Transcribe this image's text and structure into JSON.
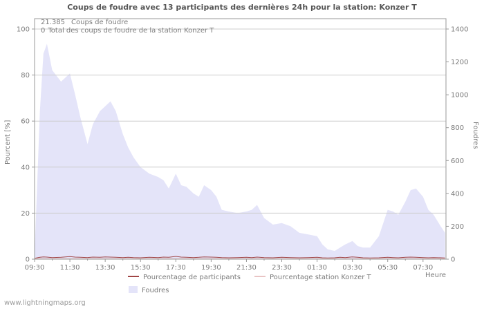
{
  "title": "Coups de foudre avec 13 participants des dernières 24h pour la station: Konzer T",
  "stats": {
    "strikes_value": "21.385",
    "strikes_label": "Coups de foudre",
    "station_value": "0",
    "station_label": "Total des coups de foudre de la station Konzer T"
  },
  "axes": {
    "y_left_label": "Pourcent  [%]",
    "y_right_label": "Foudres",
    "x_label": "Heure"
  },
  "legend": {
    "participants": "Pourcentage de participants",
    "station": "Pourcentage station Konzer T",
    "foudres": "Foudres"
  },
  "watermark": "www.lightningmaps.org",
  "colors": {
    "area_fill": "#e4e4f9",
    "participants_line": "#a04545",
    "station_line": "#e9c4c4",
    "grid": "#cccccc",
    "axis": "#999999",
    "text": "#7a7a7a",
    "title": "#555555"
  },
  "chart_data": {
    "type": "area",
    "title": "Coups de foudre avec 13 participants des dernières 24h pour la station: Konzer T",
    "x_unit": "hours_since_09:30",
    "x_domain": [
      0,
      23.3
    ],
    "x_ticks": [
      "09:30",
      "11:30",
      "13:30",
      "15:30",
      "17:30",
      "19:30",
      "21:30",
      "23:30",
      "01:30",
      "03:30",
      "05:30",
      "07:30"
    ],
    "x_tick_hours": [
      0,
      2,
      4,
      6,
      8,
      10,
      12,
      14,
      16,
      18,
      20,
      22
    ],
    "y_left": {
      "label": "Pourcent [%]",
      "min": 0,
      "max": 100,
      "ticks": [
        0,
        20,
        40,
        60,
        80,
        100
      ]
    },
    "y_right": {
      "label": "Foudres",
      "min": 0,
      "max": 1400,
      "ticks": [
        0,
        200,
        400,
        600,
        800,
        1000,
        1200,
        1400
      ]
    },
    "grid": "horizontal",
    "legend_position": "bottom",
    "x": [
      0,
      0.3,
      0.5,
      0.7,
      1.0,
      1.5,
      2.0,
      2.3,
      2.6,
      3.0,
      3.3,
      3.7,
      4.0,
      4.3,
      4.6,
      5.0,
      5.3,
      5.6,
      6.0,
      6.5,
      7.0,
      7.3,
      7.6,
      8.0,
      8.3,
      8.6,
      9.0,
      9.3,
      9.6,
      10.0,
      10.3,
      10.6,
      11.0,
      11.5,
      12.0,
      12.3,
      12.6,
      13.0,
      13.5,
      14.0,
      14.5,
      15.0,
      15.5,
      16.0,
      16.3,
      16.6,
      17.0,
      17.3,
      17.6,
      18.0,
      18.3,
      18.6,
      19.0,
      19.5,
      20.0,
      20.3,
      20.6,
      21.0,
      21.3,
      21.6,
      22.0,
      22.3,
      22.6,
      23.0,
      23.25
    ],
    "series": [
      {
        "name": "Foudres",
        "type": "area",
        "axis": "right",
        "color": "#e4e4f9",
        "values": [
          30,
          900,
          1250,
          1310,
          1150,
          1080,
          1130,
          1000,
          860,
          700,
          820,
          900,
          930,
          960,
          900,
          760,
          680,
          620,
          560,
          520,
          500,
          480,
          430,
          520,
          450,
          440,
          400,
          380,
          450,
          420,
          380,
          300,
          290,
          280,
          290,
          300,
          330,
          250,
          210,
          220,
          200,
          160,
          150,
          140,
          90,
          60,
          50,
          70,
          90,
          110,
          80,
          70,
          70,
          140,
          300,
          290,
          270,
          350,
          420,
          430,
          380,
          300,
          270,
          200,
          160
        ]
      },
      {
        "name": "Pourcentage de participants",
        "type": "line",
        "axis": "left",
        "color": "#a04545",
        "values": [
          0.4,
          0.8,
          1.0,
          0.9,
          0.7,
          0.8,
          1.1,
          0.9,
          0.8,
          0.7,
          0.9,
          0.8,
          1.0,
          0.9,
          0.8,
          0.7,
          0.8,
          0.7,
          0.6,
          0.8,
          0.7,
          0.9,
          0.8,
          1.2,
          0.9,
          0.8,
          0.7,
          0.8,
          1.0,
          0.9,
          0.8,
          0.7,
          0.6,
          0.7,
          0.8,
          0.7,
          0.9,
          0.7,
          0.6,
          0.8,
          0.7,
          0.6,
          0.7,
          0.8,
          0.6,
          0.5,
          0.6,
          0.8,
          0.7,
          1.0,
          0.8,
          0.6,
          0.5,
          0.6,
          0.8,
          0.7,
          0.6,
          0.8,
          0.9,
          0.8,
          0.7,
          0.6,
          0.7,
          0.6,
          0.5
        ]
      },
      {
        "name": "Pourcentage station Konzer T",
        "type": "line",
        "axis": "left",
        "color": "#e9c4c4",
        "values": 0
      }
    ]
  }
}
